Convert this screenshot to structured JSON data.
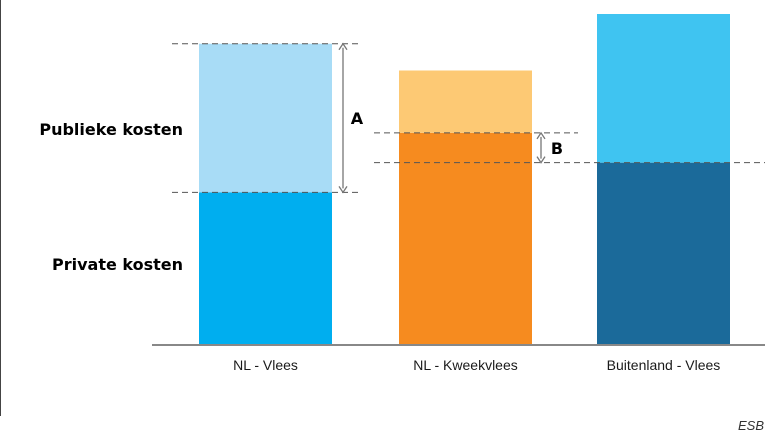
{
  "chart_data": {
    "type": "bar",
    "stacked": true,
    "categories": [
      "NL - Vlees",
      "NL - Kweekvlees",
      "Buitenland - Vlees"
    ],
    "series": [
      {
        "name": "Private kosten",
        "values": [
          5.1,
          7.1,
          6.1
        ]
      },
      {
        "name": "Publieke kosten",
        "values": [
          5.0,
          2.1,
          5.0
        ]
      }
    ],
    "ylim": [
      0,
      11.1
    ],
    "grid": false,
    "colors": {
      "private": [
        "#00aeef",
        "#f68b1f",
        "#1b6a9a"
      ],
      "public": [
        "#a8dcf6",
        "#fdc974",
        "#3fc4f1"
      ],
      "axis": "#888888",
      "dashes": "#555555"
    },
    "row_labels": {
      "public": "Publieke kosten",
      "private": "Private kosten"
    },
    "annotations": [
      {
        "label": "A",
        "category_index": 0,
        "from": 5.1,
        "to": 10.1,
        "reference_category_index": 0
      },
      {
        "label": "B",
        "category_index": 1,
        "from": 6.1,
        "to": 7.1,
        "reference_category_index": 2
      }
    ],
    "source": "ESB"
  }
}
